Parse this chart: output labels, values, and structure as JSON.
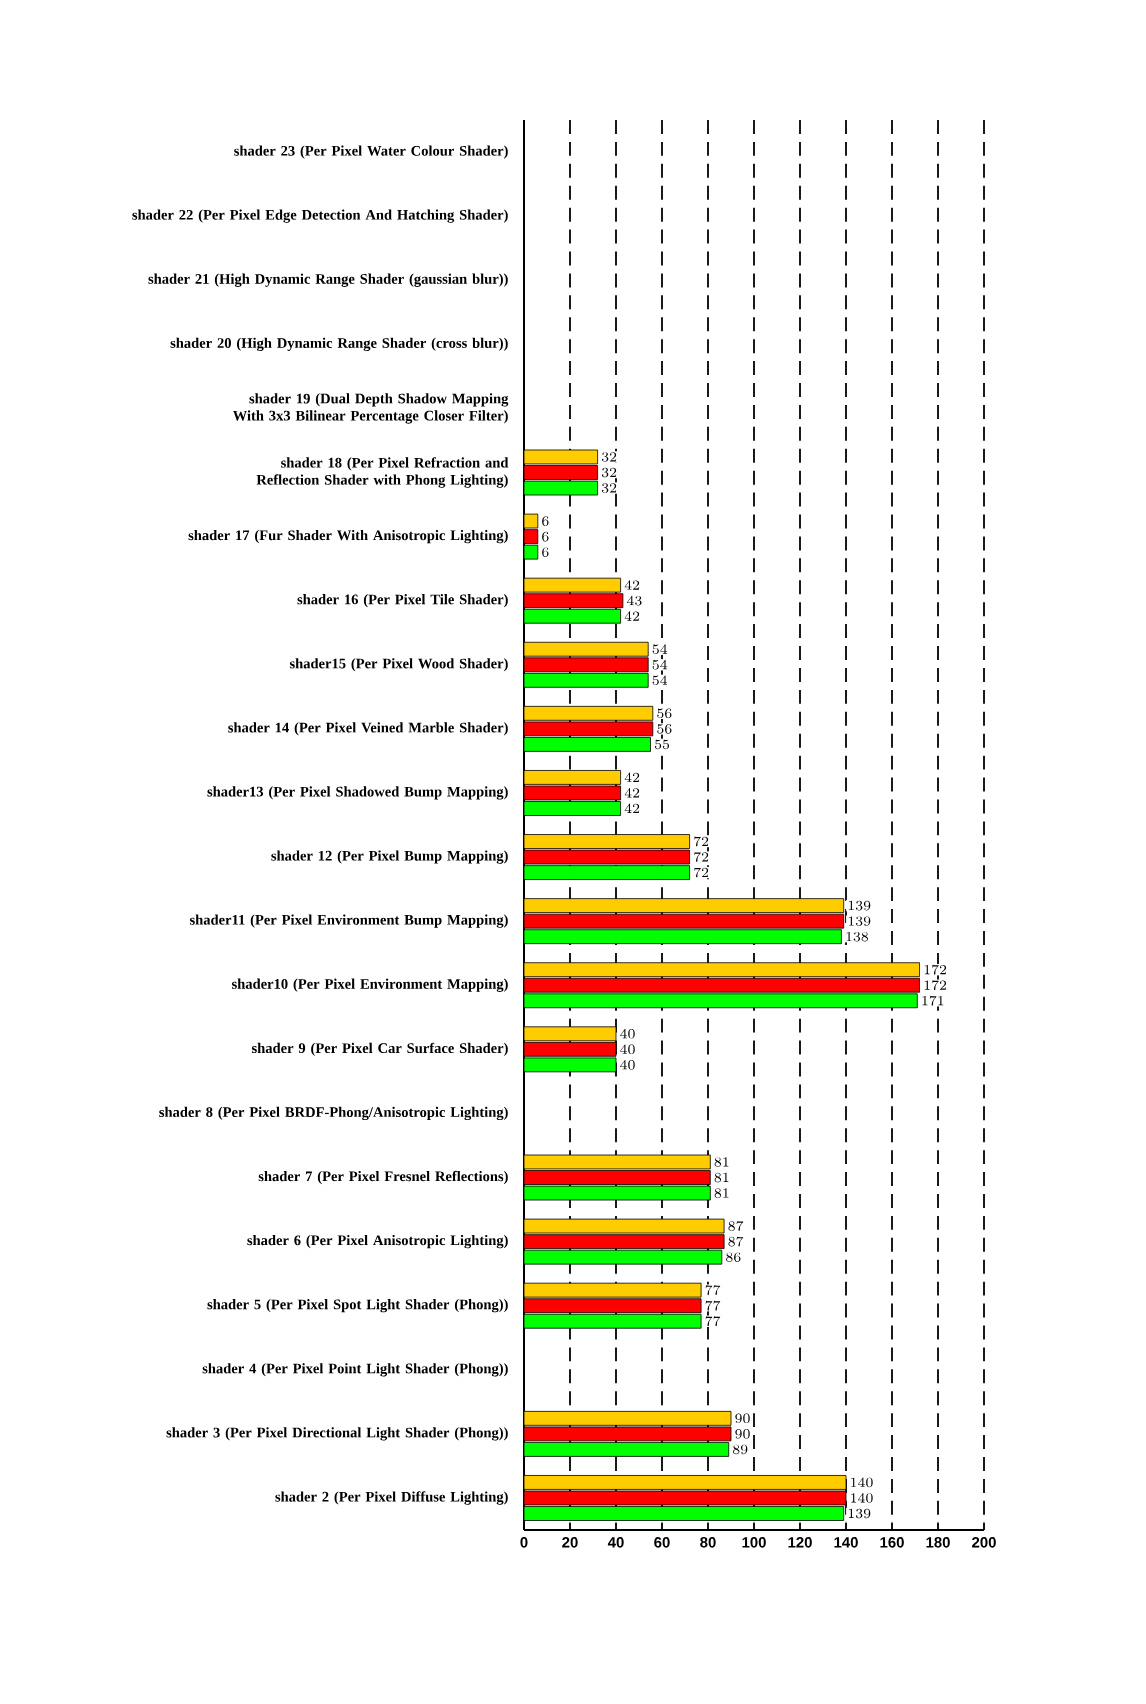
{
  "chart_data": {
    "type": "bar",
    "orientation": "horizontal",
    "categories": [
      "shader 23 (Per Pixel Water Colour Shader)",
      "shader 22 (Per Pixel Edge Detection And Hatching Shader)",
      "shader 21 (High Dynamic Range Shader (gaussian blur))",
      "shader 20 (High Dynamic Range Shader (cross blur))",
      "shader 19 (Dual Depth Shadow Mapping With 3x3 Bilinear Percentage Closer Filter)",
      "shader 18 (Per Pixel Refraction and Reflection Shader with Phong Lighting)",
      "shader 17 (Fur Shader With Anisotropic Lighting)",
      "shader 16 (Per Pixel Tile Shader)",
      "shader15 (Per Pixel Wood Shader)",
      "shader 14 (Per Pixel Veined Marble Shader)",
      "shader13 (Per Pixel Shadowed Bump Mapping)",
      "shader 12 (Per Pixel Bump Mapping)",
      "shader11 (Per Pixel Environment Bump Mapping)",
      "shader10 (Per Pixel Environment Mapping)",
      "shader 9 (Per Pixel Car Surface Shader)",
      "shader 8 (Per Pixel BRDF-Phong/Anisotropic Lighting)",
      "shader 7 (Per Pixel Fresnel Reflections)",
      "shader  6 (Per Pixel Anisotropic Lighting)",
      "shader 5 (Per Pixel Spot Light Shader (Phong))",
      "shader 4 (Per Pixel Point Light Shader (Phong))",
      "shader 3 (Per Pixel Directional Light Shader (Phong))",
      "shader 2 (Per Pixel Diffuse Lighting)"
    ],
    "series": [
      {
        "color": "#00ff00",
        "values": [
          null,
          null,
          null,
          null,
          null,
          32,
          6,
          42,
          54,
          55,
          42,
          72,
          138,
          171,
          40,
          null,
          81,
          86,
          77,
          null,
          89,
          139
        ]
      },
      {
        "color": "#ff0000",
        "values": [
          null,
          null,
          null,
          null,
          null,
          32,
          6,
          43,
          54,
          56,
          42,
          72,
          139,
          172,
          40,
          null,
          81,
          87,
          77,
          null,
          90,
          140
        ]
      },
      {
        "color": "#ffcc00",
        "values": [
          null,
          null,
          null,
          null,
          null,
          32,
          6,
          42,
          54,
          56,
          42,
          72,
          139,
          172,
          40,
          null,
          81,
          87,
          77,
          null,
          90,
          140
        ]
      }
    ],
    "xlim": [
      0,
      200
    ],
    "xticks": [
      0,
      20,
      40,
      60,
      80,
      100,
      120,
      140,
      160,
      180,
      200
    ],
    "grid": "x",
    "data_labels": true
  }
}
